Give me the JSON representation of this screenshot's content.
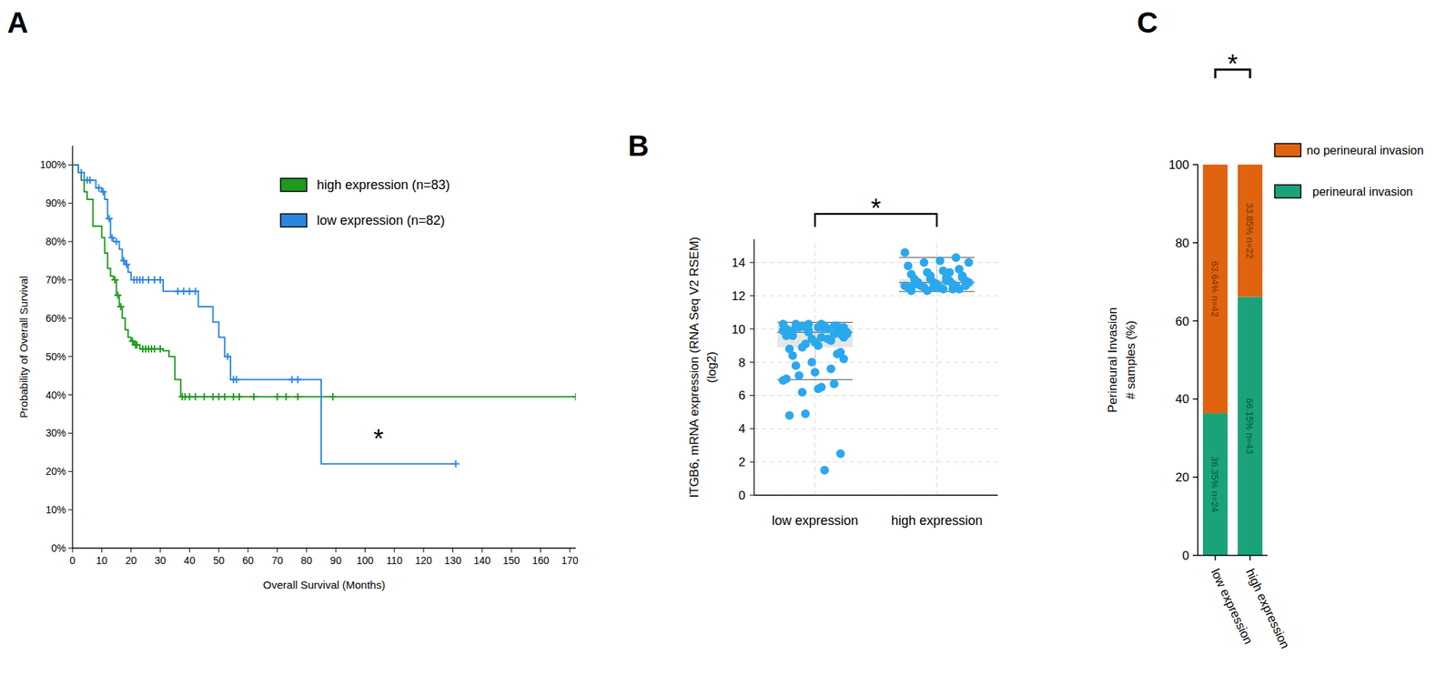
{
  "chart_data": [
    {
      "panel": "A",
      "type": "line",
      "line_style": "step",
      "grid": false,
      "legend": "upper right",
      "x_label": "Overall Survival (Months)",
      "y_label": "Probability of Overall Survival",
      "annotations": [
        "*"
      ],
      "xlim": [
        0,
        172
      ],
      "xticks": [
        0,
        10,
        20,
        30,
        40,
        50,
        60,
        70,
        80,
        90,
        100,
        110,
        120,
        130,
        140,
        150,
        160,
        170
      ],
      "ylim": [
        0,
        105
      ],
      "yticks": [
        {
          "value": 0,
          "label": "0%"
        },
        {
          "value": 10,
          "label": "10%"
        },
        {
          "value": 20,
          "label": "20%"
        },
        {
          "value": 30,
          "label": "30%"
        },
        {
          "value": 40,
          "label": "40%"
        },
        {
          "value": 50,
          "label": "50%"
        },
        {
          "value": 60,
          "label": "60%"
        },
        {
          "value": 70,
          "label": "70%"
        },
        {
          "value": 80,
          "label": "80%"
        },
        {
          "value": 90,
          "label": "90%"
        },
        {
          "value": 100,
          "label": "100%"
        }
      ],
      "series": [
        {
          "name": "high expression (n=83)",
          "color": "#1e9a1e",
          "marker": "plus",
          "x": [
            0,
            2,
            3,
            4,
            5,
            7,
            10,
            11,
            12,
            13,
            14,
            15,
            16,
            17,
            18,
            19,
            20,
            21,
            23,
            31,
            33,
            35,
            37,
            172
          ],
          "values": [
            100,
            98,
            96,
            93,
            91,
            84,
            81,
            77,
            73,
            71,
            70,
            66,
            63,
            60,
            57,
            55,
            54,
            53,
            52,
            51.5,
            50,
            44,
            39.5,
            39.5
          ],
          "censored": {
            "x": [
              14.5,
              15.5,
              16.5,
              20.5,
              21.5,
              22,
              24,
              25,
              26,
              27,
              28,
              30,
              37.5,
              38.5,
              40,
              42,
              45,
              48,
              50,
              52,
              55,
              57,
              62,
              70,
              73,
              77,
              89,
              172
            ],
            "values": [
              70,
              66,
              63,
              54,
              53,
              53,
              52,
              52,
              52,
              52,
              52,
              52,
              39.5,
              39.5,
              39.5,
              39.5,
              39.5,
              39.5,
              39.5,
              39.5,
              39.5,
              39.5,
              39.5,
              39.5,
              39.5,
              39.5,
              39.5,
              39.5
            ]
          }
        },
        {
          "name": "low expression (n=82)",
          "color": "#2b86e0",
          "marker": "plus",
          "x": [
            0,
            2,
            4,
            8,
            10,
            11,
            12,
            13,
            14,
            16,
            17,
            18,
            19,
            20,
            31,
            43,
            48,
            50,
            52,
            54,
            85,
            131
          ],
          "values": [
            100,
            98,
            96,
            94,
            93,
            91,
            86,
            81,
            80,
            78,
            75,
            74,
            72,
            70,
            67,
            63,
            59,
            55,
            50,
            44,
            22,
            22
          ],
          "censored": {
            "x": [
              3,
              5,
              6,
              9,
              10.5,
              12.5,
              13.5,
              15,
              17.5,
              18.5,
              21,
              22,
              23,
              24,
              26,
              28,
              30,
              36,
              38,
              40,
              42,
              53,
              55,
              56,
              75,
              77,
              131
            ],
            "values": [
              98,
              96,
              96,
              94,
              93,
              86,
              81,
              80,
              75,
              74,
              70,
              70,
              70,
              70,
              70,
              70,
              70,
              67,
              67,
              67,
              67,
              50,
              44,
              44,
              44,
              44,
              22
            ]
          }
        }
      ]
    },
    {
      "panel": "B",
      "type": "box",
      "grid": true,
      "color": "#2aa8ee",
      "y_label": [
        "ITGB6, mRNA expression (RNA Seq V2 RSEM)",
        "(log2)"
      ],
      "annotations": [
        "*"
      ],
      "categories": [
        "low expression",
        "high expression"
      ],
      "ylim": [
        0,
        15.4
      ],
      "yticks": [
        0,
        2,
        4,
        6,
        8,
        10,
        12,
        14
      ],
      "points": [
        [
          10.3,
          10.2,
          10.1,
          10.2,
          10.0,
          9.9,
          10.3,
          10.1,
          9.8,
          9.7,
          10.2,
          9.9,
          9.6,
          9.5,
          10.0,
          9.4,
          10.3,
          9.8,
          9.3,
          9.2,
          10.1,
          9.9,
          9.7,
          9.0,
          8.9,
          9.6,
          10.2,
          9.5,
          9.1,
          8.8,
          8.6,
          10.0,
          9.8,
          8.4,
          8.2,
          9.4,
          8.0,
          7.8,
          9.7,
          7.6,
          7.4,
          7.2,
          6.9,
          6.7,
          6.4,
          6.2,
          7.0,
          8.5,
          6.5,
          4.9,
          4.8,
          2.5,
          1.5,
          10.3,
          9.9,
          10.1
        ],
        [
          14.6,
          14.3,
          14.1,
          14.0,
          13.8,
          13.6,
          13.5,
          13.4,
          13.3,
          13.2,
          13.1,
          13.0,
          13.0,
          12.9,
          12.9,
          12.8,
          12.8,
          12.8,
          12.7,
          12.7,
          12.6,
          12.6,
          12.6,
          12.5,
          12.5,
          12.5,
          12.4,
          12.4,
          12.3,
          12.3,
          13.1,
          12.9,
          13.2,
          12.7,
          12.6,
          13.4,
          12.5,
          12.8,
          14.0,
          12.4
        ]
      ],
      "boxes": [
        {
          "min": 6.95,
          "q1": 8.9,
          "median": 9.8,
          "q3": 10.25,
          "max": 10.4
        },
        {
          "min": 12.25,
          "q1": 12.5,
          "median": 12.8,
          "q3": 13.0,
          "max": 14.3
        }
      ]
    },
    {
      "panel": "C",
      "type": "bar",
      "stacked": true,
      "data_labels": true,
      "legend": "right",
      "y_label": [
        "Perineural Invasion",
        "# samples (%)"
      ],
      "annotations": [
        "*"
      ],
      "categories": [
        "low expression",
        "high expression"
      ],
      "ylim": [
        0,
        100
      ],
      "yticks": [
        0,
        20,
        40,
        60,
        80,
        100
      ],
      "series": [
        {
          "name": "no perineural invasion",
          "color": "#e0640f",
          "values": [
            63.64,
            33.85
          ],
          "value_labels": [
            "63.64% n=42",
            "33.85% n=22"
          ]
        },
        {
          "name": "perineural invasion",
          "color": "#1aa37a",
          "values": [
            36.35,
            66.15
          ],
          "value_labels": [
            "36.35% n=24",
            "66.15% n=43"
          ]
        }
      ]
    }
  ]
}
